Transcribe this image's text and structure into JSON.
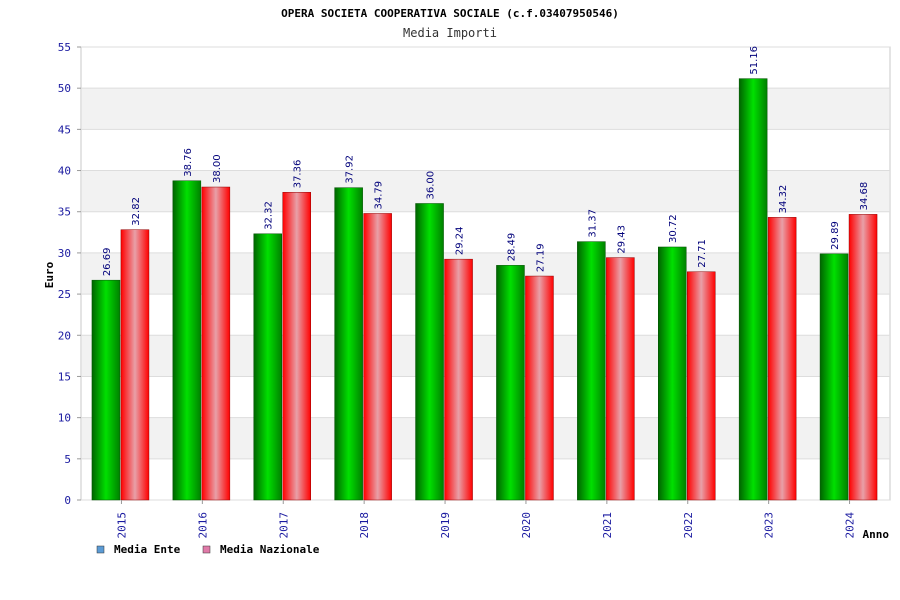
{
  "chart_data": {
    "type": "bar",
    "title": "OPERA SOCIETA COOPERATIVA SOCIALE (c.f.03407950546)",
    "subtitle": "Media Importi",
    "xlabel": "Anno",
    "ylabel": "Euro",
    "ylim": [
      0,
      55
    ],
    "yticks": [
      "0",
      "5",
      "10",
      "15",
      "20",
      "25",
      "30",
      "35",
      "40",
      "45",
      "50",
      "55"
    ],
    "categories": [
      "2015",
      "2016",
      "2017",
      "2018",
      "2019",
      "2020",
      "2021",
      "2022",
      "2023",
      "2024"
    ],
    "series": [
      {
        "name": "Media Ente",
        "values": [
          26.69,
          38.76,
          32.32,
          37.92,
          36.0,
          28.49,
          31.37,
          30.72,
          51.16,
          29.89
        ],
        "labels": [
          "26.69",
          "38.76",
          "32.32",
          "37.92",
          "36.00",
          "28.49",
          "31.37",
          "30.72",
          "51.16",
          "29.89"
        ],
        "color": "#00b000",
        "legend_color": "#5b9bd5"
      },
      {
        "name": "Media Nazionale",
        "values": [
          32.82,
          38.0,
          37.36,
          34.79,
          29.24,
          27.19,
          29.43,
          27.71,
          34.32,
          34.68
        ],
        "labels": [
          "32.82",
          "38.00",
          "37.36",
          "34.79",
          "29.24",
          "27.19",
          "29.43",
          "27.71",
          "34.32",
          "34.68"
        ],
        "color": "#f00000",
        "legend_color": "#e07aa8"
      }
    ],
    "grid": true,
    "legend_position": "bottom-left"
  }
}
